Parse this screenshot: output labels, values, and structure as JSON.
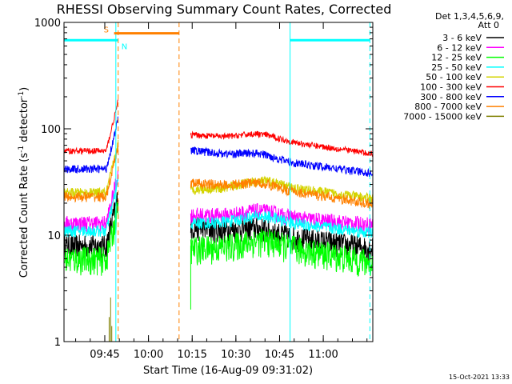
{
  "chart_data": {
    "type": "line",
    "title": "RHESSI Observing Summary Count Rates, Corrected",
    "xlabel": "Start Time (16-Aug-09 09:31:02)",
    "ylabel": "Corrected Count Rate (s",
    "ylabel_sup": "-1",
    "ylabel_mid": " detector",
    "ylabel_tail": ")",
    "yscale": "log",
    "ylim": [
      1,
      1000
    ],
    "xlim_minutes": [
      31.0,
      137.0
    ],
    "x_ticks": [
      {
        "t": 45,
        "label": "09:45"
      },
      {
        "t": 60,
        "label": "10:00"
      },
      {
        "t": 75,
        "label": "10:15"
      },
      {
        "t": 90,
        "label": "10:30"
      },
      {
        "t": 105,
        "label": "10:45"
      },
      {
        "t": 120,
        "label": "11:00"
      }
    ],
    "y_ticks": [
      {
        "v": 1,
        "label": "1"
      },
      {
        "v": 10,
        "label": "10"
      },
      {
        "v": 100,
        "label": "100"
      },
      {
        "v": 1000,
        "label": "1000"
      }
    ],
    "legend_header": [
      "Det 1,3,4,5,6,9,",
      "Att 0"
    ],
    "flags": [
      {
        "label": "S",
        "start": 48.2,
        "end": 70.5,
        "level": 790,
        "color": "#ff8000"
      },
      {
        "label": "N",
        "start": 48.5,
        "end": 49.5,
        "level": 680,
        "color": "#00ffff"
      }
    ],
    "markers": [
      {
        "name": "night-start",
        "t": 48.8,
        "color": "#00ffff",
        "style": "solid"
      },
      {
        "name": "night-end",
        "t": 108.6,
        "color": "#00ffff",
        "style": "solid"
      },
      {
        "name": "night-band-left",
        "t": 31.0,
        "color": "#00ffff",
        "style": "solid"
      },
      {
        "name": "saa-start",
        "t": 49.6,
        "color": "#ff8000",
        "style": "dashed"
      },
      {
        "name": "saa-end",
        "t": 70.5,
        "color": "#ff8000",
        "style": "dashed"
      },
      {
        "name": "end-marker",
        "t": 136.0,
        "color": "#00ffff",
        "style": "dashed"
      }
    ],
    "night_bands": [
      {
        "start": 31.0,
        "end": 48.8,
        "level": 680
      },
      {
        "start": 108.6,
        "end": 136.0,
        "level": 680
      }
    ],
    "series": [
      {
        "name": "3 - 6 keV",
        "color": "#000000",
        "before": 8.0,
        "after_start": 12.0,
        "after_mid": 10.0,
        "after_end": 7.5,
        "noise": 0.12
      },
      {
        "name": "6 - 12 keV",
        "color": "#ff00ff",
        "before": 13.0,
        "after_start": 15.5,
        "after_mid": 15.0,
        "after_end": 12.5,
        "noise": 0.08
      },
      {
        "name": "12 - 25 keV",
        "color": "#00ff00",
        "before": 6.0,
        "after_start": 7.5,
        "after_mid": 8.0,
        "after_end": 5.5,
        "noise": 0.14
      },
      {
        "name": "25 - 50 keV",
        "color": "#00ffff",
        "before": 11.0,
        "after_start": 13.0,
        "after_mid": 13.5,
        "after_end": 10.5,
        "noise": 0.06
      },
      {
        "name": "50 - 100 keV",
        "color": "#d4d400",
        "before": 25.0,
        "after_start": 27.0,
        "after_mid": 29.0,
        "after_end": 22.0,
        "noise": 0.05
      },
      {
        "name": "100 - 300 keV",
        "color": "#ff0000",
        "before": 62.0,
        "after_start": 88.0,
        "after_mid": 78.0,
        "after_end": 58.0,
        "noise": 0.03
      },
      {
        "name": "300 - 800 keV",
        "color": "#0000ff",
        "before": 42.0,
        "after_start": 63.0,
        "after_mid": 50.0,
        "after_end": 38.0,
        "noise": 0.04
      },
      {
        "name": "800 - 7000 keV",
        "color": "#ff8000",
        "before": 23.0,
        "after_start": 31.0,
        "after_mid": 27.0,
        "after_end": 19.5,
        "noise": 0.05
      },
      {
        "name": "7000 - 15000 keV",
        "color": "#808000",
        "before": 0.0,
        "after_start": 0.0,
        "after_mid": 0.0,
        "after_end": 0.0,
        "noise": 0.0
      }
    ],
    "gap": [
      49.6,
      74.5
    ]
  },
  "footer_stamp": "15-Oct-2021 13:33"
}
